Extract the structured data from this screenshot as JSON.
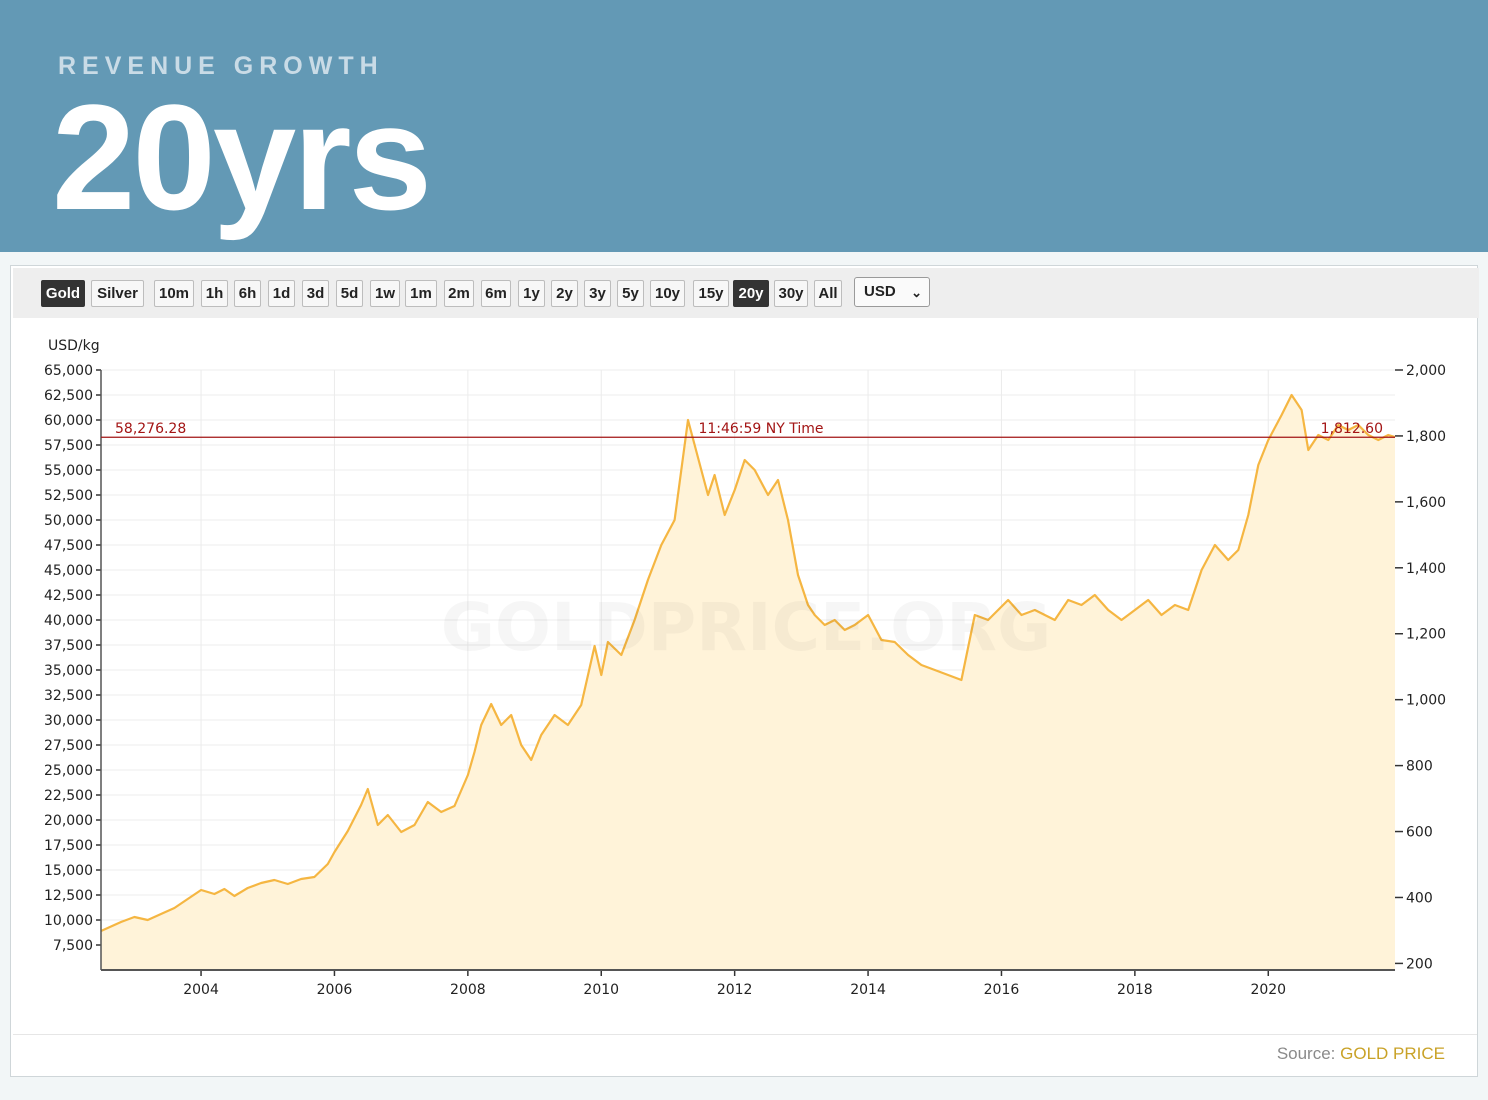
{
  "header": {
    "eyebrow": "REVENUE GROWTH",
    "title": "20yrs"
  },
  "toolbar": {
    "buttons": [
      "Gold",
      "Silver",
      "10m",
      "1h",
      "6h",
      "1d",
      "3d",
      "5d",
      "1w",
      "1m",
      "2m",
      "6m",
      "1y",
      "2y",
      "3y",
      "5y",
      "10y",
      "15y",
      "20y",
      "30y",
      "All"
    ],
    "active_metal": "Gold",
    "active_range": "20y",
    "currency": "USD"
  },
  "footer": {
    "source_label": "Source:",
    "source_name": "GOLD PRICE"
  },
  "colors": {
    "line": "#f5b642",
    "fill": "#fff3d9",
    "marker": "#a31515",
    "header": "#6399b5"
  },
  "chart_data": {
    "type": "area",
    "left_axis_label": "USD/kg",
    "left_ticks": [
      "65,000",
      "62,500",
      "60,000",
      "57,500",
      "55,000",
      "52,500",
      "50,000",
      "47,500",
      "45,000",
      "42,500",
      "40,000",
      "37,500",
      "35,000",
      "32,500",
      "30,000",
      "27,500",
      "25,000",
      "22,500",
      "20,000",
      "17,500",
      "15,000",
      "12,500",
      "10,000",
      "7,500"
    ],
    "right_ticks": [
      "2,000",
      "1,800",
      "1,600",
      "1,400",
      "1,200",
      "1,000",
      "800",
      "600",
      "400",
      "200"
    ],
    "x_ticks": [
      "2004",
      "2006",
      "2008",
      "2010",
      "2012",
      "2014",
      "2016",
      "2018",
      "2020"
    ],
    "ylim_left": [
      5000,
      65000
    ],
    "ylim_right": [
      180,
      2000
    ],
    "xlim": [
      2002.5,
      2021.9
    ],
    "current_value_left": "58,276.28",
    "current_value_right": "1,812.60",
    "time_label": "11:46:59 NY Time",
    "current_value": 58276.28,
    "watermark": "GOLDPRICE.ORG",
    "grid": true,
    "x": [
      2002.5,
      2002.8,
      2003.0,
      2003.2,
      2003.4,
      2003.6,
      2003.8,
      2004.0,
      2004.2,
      2004.35,
      2004.5,
      2004.7,
      2004.9,
      2005.1,
      2005.3,
      2005.5,
      2005.7,
      2005.9,
      2006.0,
      2006.2,
      2006.4,
      2006.5,
      2006.65,
      2006.8,
      2007.0,
      2007.2,
      2007.4,
      2007.6,
      2007.8,
      2008.0,
      2008.1,
      2008.2,
      2008.35,
      2008.5,
      2008.65,
      2008.8,
      2008.95,
      2009.1,
      2009.3,
      2009.5,
      2009.7,
      2009.9,
      2010.0,
      2010.1,
      2010.3,
      2010.5,
      2010.7,
      2010.9,
      2011.1,
      2011.3,
      2011.5,
      2011.6,
      2011.7,
      2011.85,
      2012.0,
      2012.15,
      2012.3,
      2012.5,
      2012.65,
      2012.8,
      2012.95,
      2013.1,
      2013.2,
      2013.35,
      2013.5,
      2013.65,
      2013.8,
      2014.0,
      2014.2,
      2014.4,
      2014.6,
      2014.8,
      2015.0,
      2015.2,
      2015.4,
      2015.6,
      2015.8,
      2015.95,
      2016.1,
      2016.3,
      2016.5,
      2016.65,
      2016.8,
      2017.0,
      2017.2,
      2017.4,
      2017.6,
      2017.8,
      2018.0,
      2018.2,
      2018.4,
      2018.6,
      2018.8,
      2019.0,
      2019.2,
      2019.4,
      2019.55,
      2019.7,
      2019.85,
      2020.0,
      2020.2,
      2020.35,
      2020.5,
      2020.6,
      2020.75,
      2020.9,
      2021.05,
      2021.2,
      2021.35,
      2021.5,
      2021.65,
      2021.8,
      2021.9
    ],
    "values": [
      8900,
      9800,
      10300,
      10000,
      10600,
      11200,
      12100,
      13000,
      12600,
      13100,
      12400,
      13200,
      13700,
      14000,
      13600,
      14100,
      14300,
      15600,
      16800,
      18900,
      21500,
      23100,
      19500,
      20500,
      18800,
      19500,
      21800,
      20800,
      21400,
      24500,
      26800,
      29500,
      31600,
      29500,
      30500,
      27500,
      26000,
      28500,
      30500,
      29500,
      31500,
      37400,
      34500,
      37800,
      36500,
      40000,
      44000,
      47500,
      50000,
      60000,
      55000,
      52500,
      54500,
      50500,
      53000,
      56000,
      55000,
      52500,
      54000,
      50000,
      44500,
      41500,
      40500,
      39500,
      40000,
      39000,
      39500,
      40500,
      38000,
      37800,
      36500,
      35500,
      35000,
      34500,
      34000,
      40500,
      40000,
      41000,
      42000,
      40500,
      41000,
      40500,
      40000,
      42000,
      41500,
      42500,
      41000,
      40000,
      41000,
      42000,
      40500,
      41500,
      41000,
      45000,
      47500,
      46000,
      47000,
      50500,
      55500,
      58000,
      60500,
      62500,
      61000,
      57000,
      58500,
      58000,
      59500,
      59000,
      59500,
      58500,
      58000,
      58500,
      58300
    ]
  }
}
